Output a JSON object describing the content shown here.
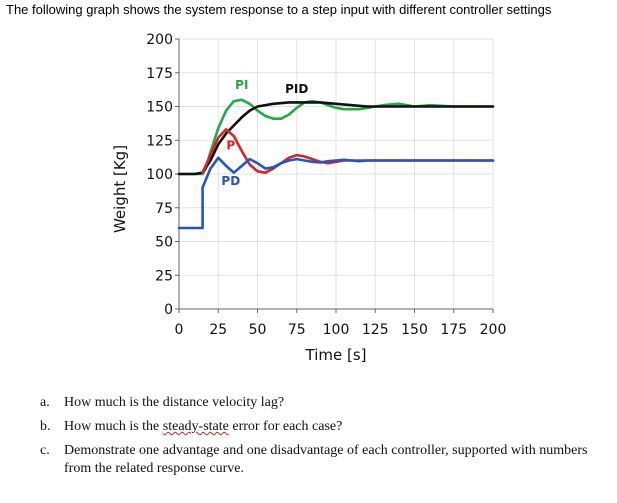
{
  "intro": "The following graph shows the system response to a step input with different controller settings",
  "chart_data": {
    "type": "line",
    "title": "",
    "xlabel": "Time [s]",
    "ylabel": "Weight [Kg]",
    "xlim": [
      0,
      200
    ],
    "ylim": [
      0,
      200
    ],
    "x_ticks": [
      0,
      25,
      50,
      75,
      100,
      125,
      150,
      175,
      200
    ],
    "y_ticks": [
      0,
      25,
      50,
      75,
      100,
      125,
      150,
      175,
      200
    ],
    "grid": true,
    "series": [
      {
        "name": "PI",
        "color": "#22aa44",
        "x": [
          0,
          10,
          15,
          17,
          20,
          25,
          30,
          35,
          40,
          45,
          50,
          55,
          60,
          65,
          70,
          75,
          80,
          85,
          90,
          95,
          100,
          105,
          110,
          115,
          120,
          130,
          140,
          150,
          160,
          175,
          200
        ],
        "y": [
          100,
          100,
          100,
          104,
          116,
          134,
          147,
          154,
          155,
          152,
          147,
          143,
          141,
          141,
          144,
          149,
          153,
          154,
          153,
          151,
          149,
          148,
          148,
          148,
          149,
          151,
          152,
          150,
          151,
          150,
          150
        ]
      },
      {
        "name": "PID",
        "color": "#111111",
        "x": [
          0,
          10,
          15,
          20,
          25,
          30,
          35,
          40,
          45,
          50,
          55,
          60,
          70,
          80,
          90,
          100,
          110,
          120,
          130,
          150,
          175,
          200
        ],
        "y": [
          100,
          100,
          101,
          110,
          122,
          130,
          136,
          142,
          147,
          150,
          151,
          152,
          153,
          153,
          153,
          152,
          151,
          150,
          150,
          150,
          150,
          150
        ]
      },
      {
        "name": "P",
        "color": "#dd2222",
        "x": [
          15,
          20,
          25,
          30,
          35,
          40,
          45,
          50,
          55,
          60,
          65,
          70,
          75,
          80,
          85,
          90,
          95,
          100,
          105,
          110,
          200
        ],
        "y": [
          101,
          114,
          127,
          133,
          128,
          117,
          107,
          102,
          101,
          104,
          108,
          112,
          114,
          113,
          111,
          109,
          108,
          109,
          110,
          110,
          110
        ]
      },
      {
        "name": "PD",
        "color": "#2255cc",
        "x": [
          0,
          10,
          10.01,
          15,
          15.01,
          20,
          25,
          30,
          35,
          40,
          45,
          50,
          55,
          60,
          65,
          70,
          75,
          80,
          85,
          90,
          95,
          100,
          105,
          110,
          115,
          120,
          130,
          200
        ],
        "y": [
          60,
          60,
          60,
          60,
          90,
          104,
          112,
          106,
          101,
          106,
          111,
          108,
          104,
          105,
          108,
          110,
          111,
          110,
          109,
          108.5,
          109.5,
          110,
          110.5,
          110,
          109.5,
          110,
          110,
          110
        ]
      }
    ],
    "annotations": [
      {
        "text": "PI",
        "x": 40,
        "y": 163,
        "color": "#22aa44"
      },
      {
        "text": "PID",
        "x": 75,
        "y": 160,
        "color": "#111111"
      },
      {
        "text": "P",
        "x": 33,
        "y": 118,
        "color": "#dd2222"
      },
      {
        "text": "PD",
        "x": 33,
        "y": 92,
        "color": "#2255cc"
      }
    ]
  },
  "questions": [
    {
      "letter": "a.",
      "text": "How much is the distance velocity lag?"
    },
    {
      "letter": "b.",
      "before": "How much is the ",
      "flagged": "steady-state",
      "after": " error for each case?"
    },
    {
      "letter": "c.",
      "text": "Demonstrate one advantage and one disadvantage of each controller, supported with numbers from the related response curve."
    }
  ]
}
